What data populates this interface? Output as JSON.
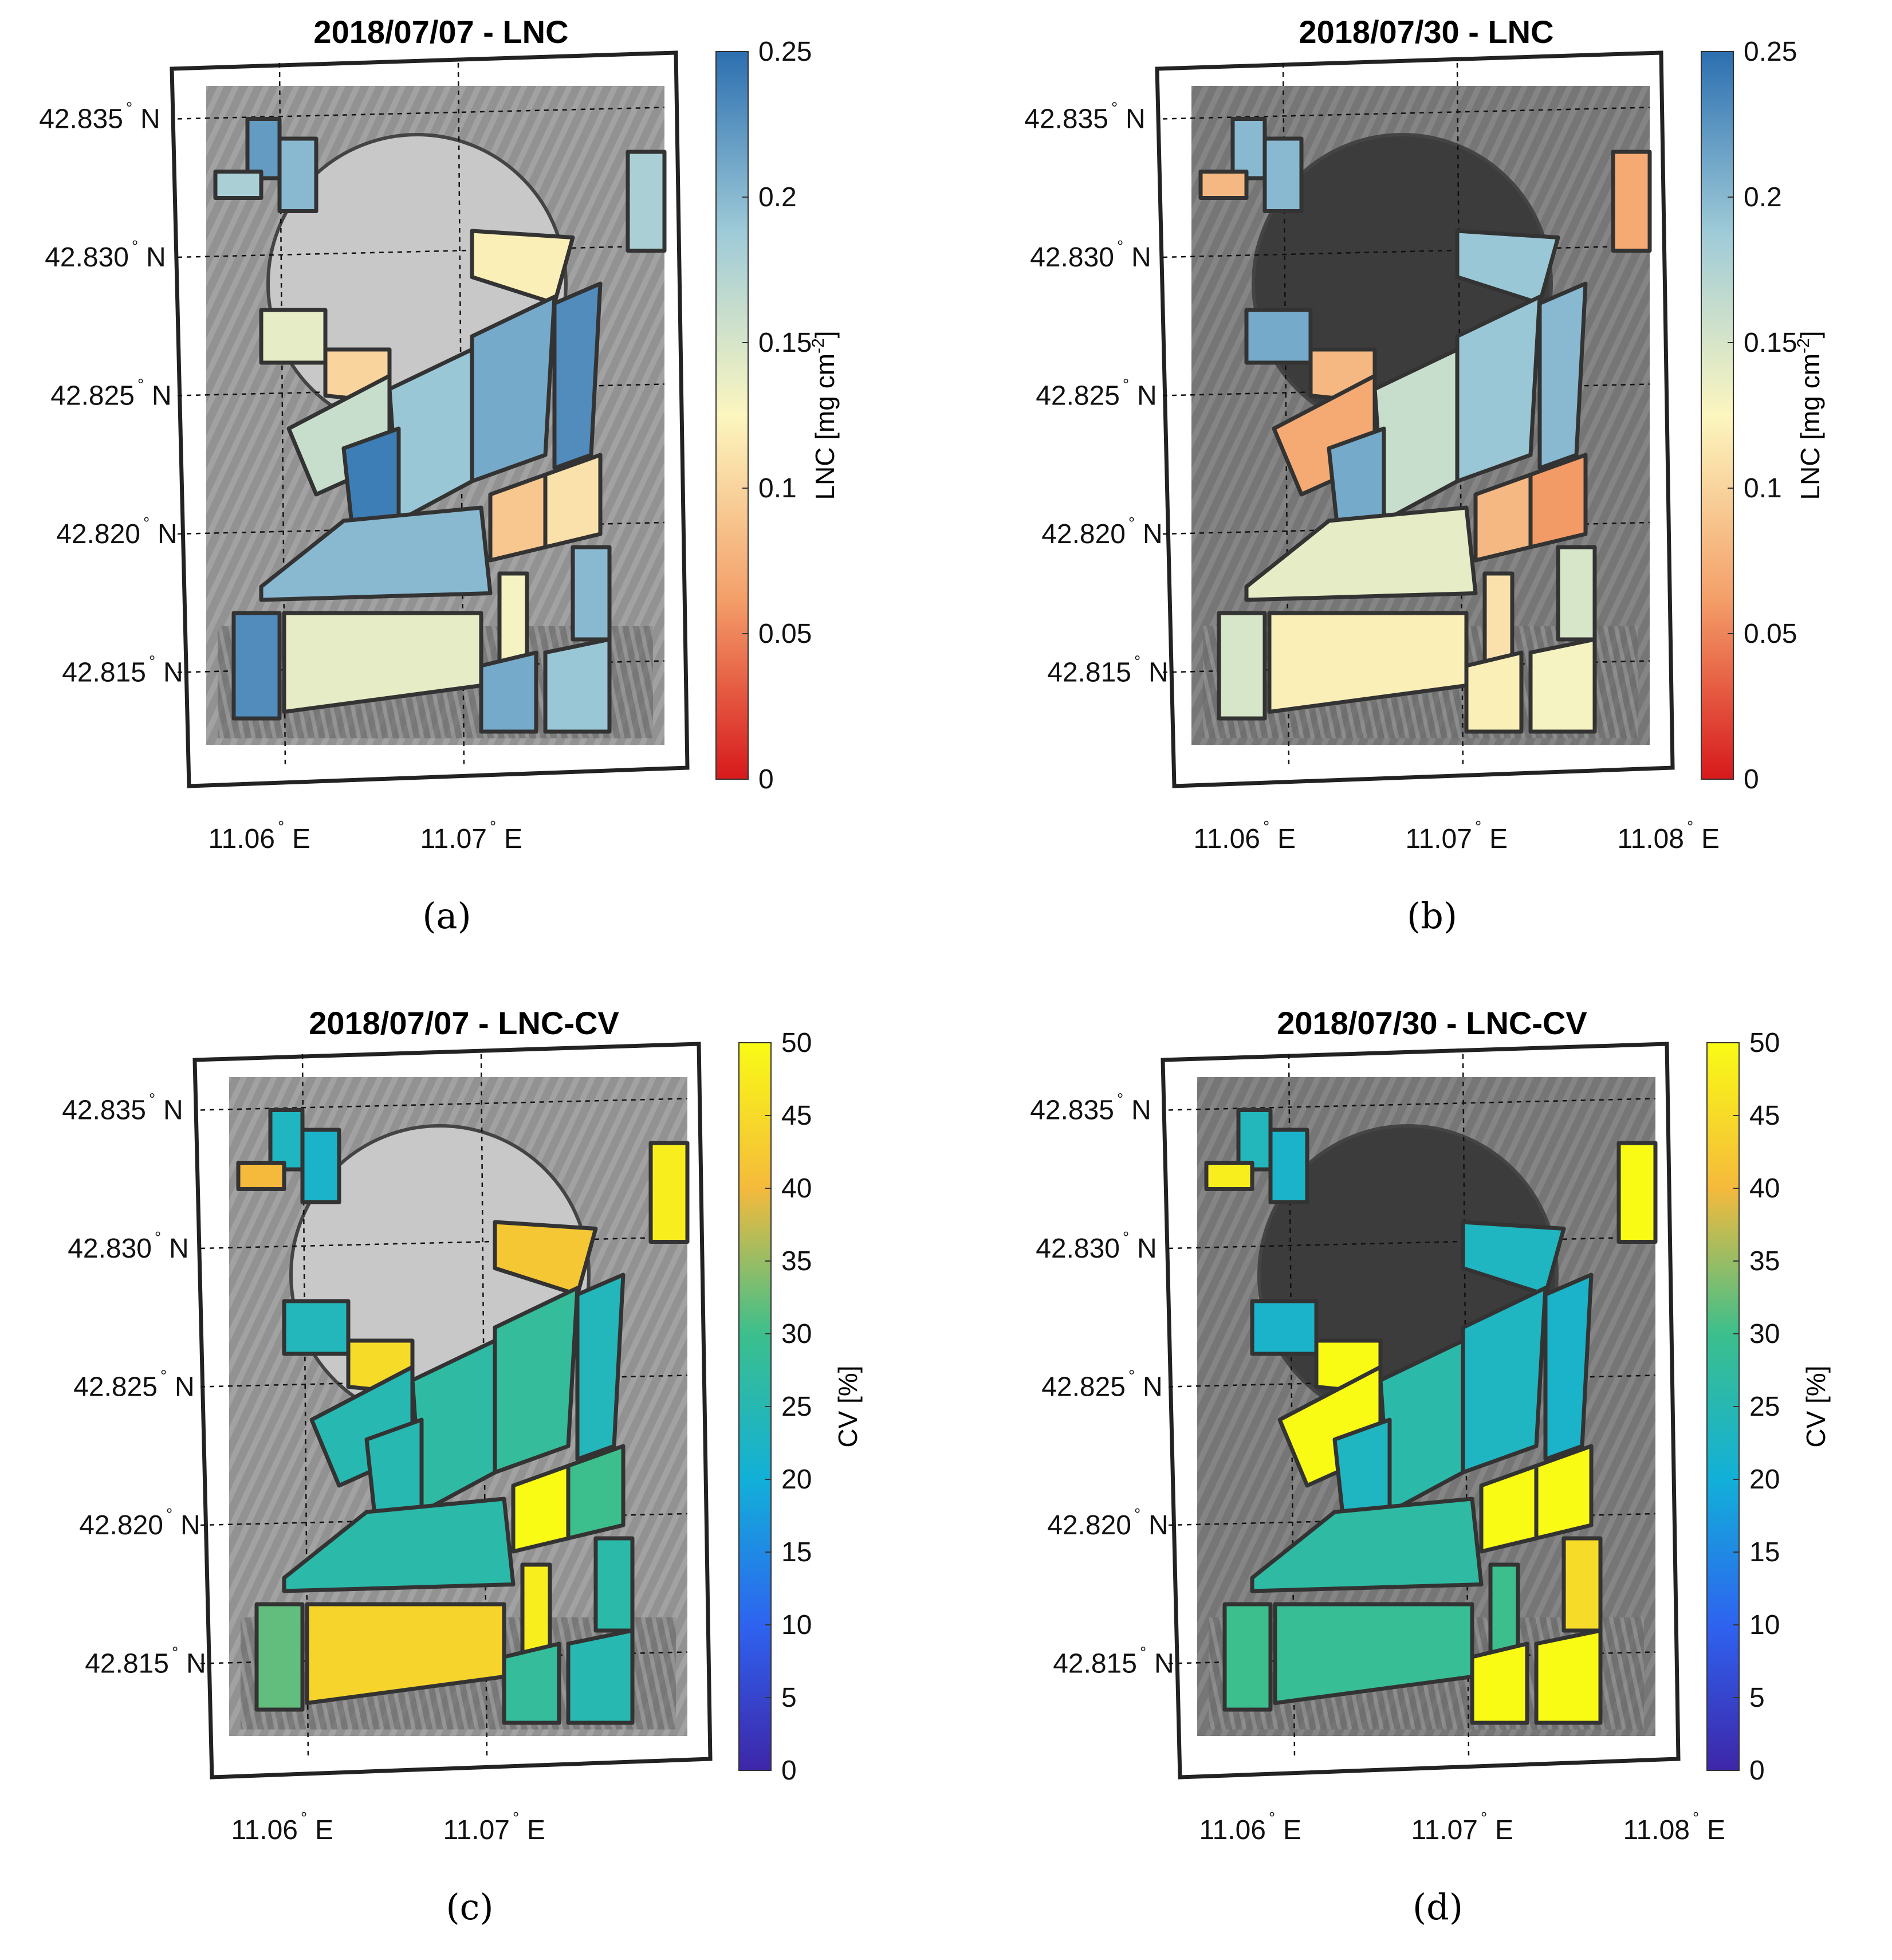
{
  "panels": [
    {
      "id": "a",
      "title": "2018/07/07 - LNC",
      "caption": "(a)",
      "variable": "LNC",
      "colormap": "rdylbu",
      "colorbar": {
        "label_main": "LNC [mg cm",
        "label_sup": "-2",
        "label_end": "]",
        "ticks": [
          "0",
          "0.05",
          "0.1",
          "0.15",
          "0.2",
          "0.25"
        ],
        "min": 0,
        "max": 0.25
      },
      "lat_ticks": [
        "42.835",
        "42.830",
        "42.825",
        "42.820",
        "42.815"
      ],
      "lat_suffix": "N",
      "lon_ticks": [
        "11.06",
        "11.07"
      ],
      "lon_suffix": "E",
      "field_values": [
        0.22,
        0.18,
        0.2,
        0.12,
        0.14,
        0.1,
        0.16,
        0.19,
        0.21,
        0.23,
        0.24,
        0.18,
        0.09,
        0.11,
        0.2,
        0.23,
        0.14,
        0.13,
        0.2,
        0.21,
        0.19
      ]
    },
    {
      "id": "b",
      "title": "2018/07/30 - LNC",
      "caption": "(b)",
      "variable": "LNC",
      "colormap": "rdylbu",
      "colorbar": {
        "label_main": "LNC [mg cm",
        "label_sup": "-2",
        "label_end": "]",
        "ticks": [
          "0",
          "0.05",
          "0.1",
          "0.15",
          "0.2",
          "0.25"
        ],
        "min": 0,
        "max": 0.25
      },
      "lat_ticks": [
        "42.835",
        "42.830",
        "42.825",
        "42.820",
        "42.815"
      ],
      "lat_suffix": "N",
      "lon_ticks": [
        "11.06",
        "11.07",
        "11.08"
      ],
      "lon_suffix": "E",
      "field_values": [
        0.2,
        0.08,
        0.2,
        0.19,
        0.21,
        0.08,
        0.07,
        0.16,
        0.19,
        0.2,
        0.21,
        0.07,
        0.08,
        0.06,
        0.14,
        0.15,
        0.12,
        0.11,
        0.15,
        0.12,
        0.13
      ]
    },
    {
      "id": "c",
      "title": "2018/07/07 - LNC-CV",
      "caption": "(c)",
      "variable": "CV",
      "colormap": "parula",
      "colorbar": {
        "label_main": "CV [%]",
        "label_sup": "",
        "label_end": "",
        "ticks": [
          "0",
          "5",
          "10",
          "15",
          "20",
          "25",
          "30",
          "35",
          "40",
          "45",
          "50"
        ],
        "min": 0,
        "max": 50
      },
      "lat_ticks": [
        "42.835",
        "42.830",
        "42.825",
        "42.820",
        "42.815"
      ],
      "lat_suffix": "N",
      "lon_ticks": [
        "11.06",
        "11.07"
      ],
      "lon_suffix": "E",
      "field_values": [
        23,
        40,
        22,
        42,
        24,
        45,
        25,
        27,
        28,
        24,
        25,
        48,
        50,
        30,
        26,
        32,
        44,
        48,
        26,
        28,
        25
      ]
    },
    {
      "id": "d",
      "title": "2018/07/30 - LNC-CV",
      "caption": "(d)",
      "variable": "CV",
      "colormap": "parula",
      "colorbar": {
        "label_main": "CV [%]",
        "label_sup": "",
        "label_end": "",
        "ticks": [
          "0",
          "5",
          "10",
          "15",
          "20",
          "25",
          "30",
          "35",
          "40",
          "45",
          "50"
        ],
        "min": 0,
        "max": 50
      },
      "lat_ticks": [
        "42.835",
        "42.830",
        "42.825",
        "42.820",
        "42.815"
      ],
      "lat_suffix": "N",
      "lon_ticks": [
        "11.06",
        "11.07",
        "11.08"
      ],
      "lon_suffix": "E",
      "field_values": [
        24,
        48,
        22,
        23,
        22,
        50,
        50,
        26,
        23,
        22,
        23,
        50,
        50,
        50,
        27,
        30,
        29,
        30,
        45,
        50,
        50
      ]
    }
  ]
}
